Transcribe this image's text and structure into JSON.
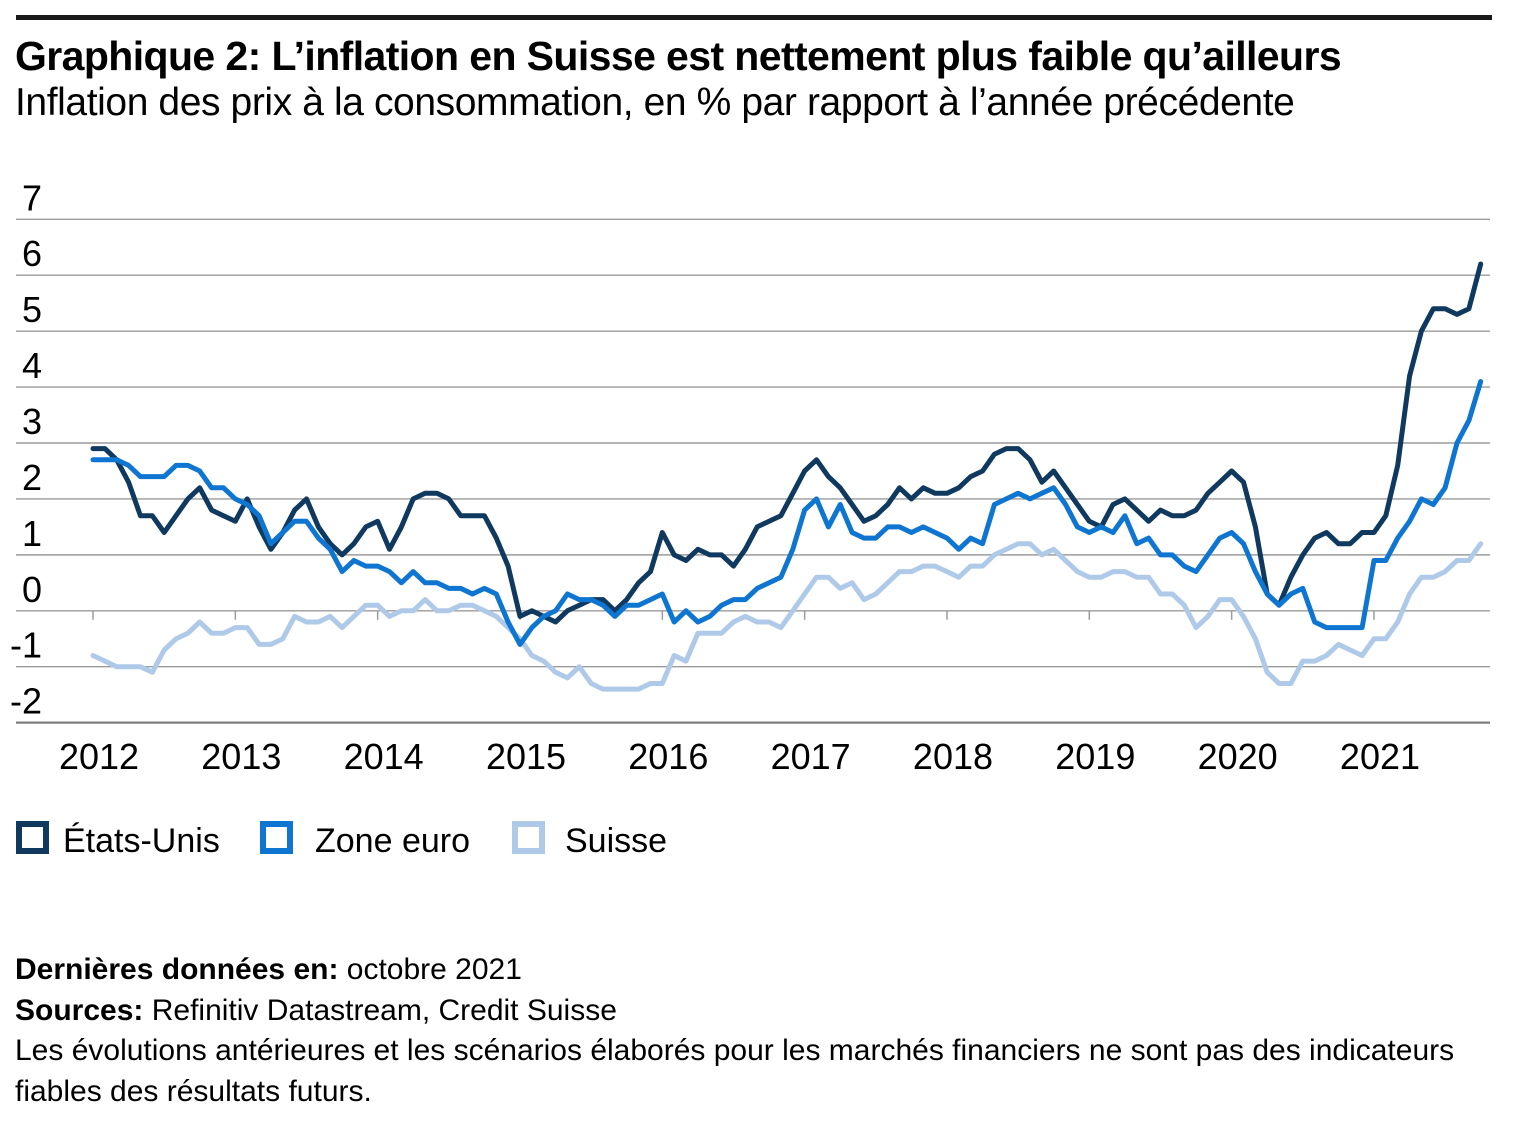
{
  "header": {
    "title": "Graphique 2: L’inflation en Suisse est nettement plus faible qu’ailleurs",
    "subtitle": "Inflation des prix à la consommation, en % par rapport à l’année précédente"
  },
  "colors": {
    "rule": "#1a1a1a",
    "grid": "#9b9b9b",
    "axis": "#7d7d7d",
    "text": "#000000"
  },
  "chart_data": {
    "type": "line",
    "title": "Inflation des prix à la consommation, en % par rapport à l’année précédente",
    "x_unit": "monthly",
    "x_start": "2012-01",
    "x_end": "2021-10",
    "x_tick_labels": [
      "2012",
      "2013",
      "2014",
      "2015",
      "2016",
      "2017",
      "2018",
      "2019",
      "2020",
      "2021"
    ],
    "y_ticks": [
      7,
      6,
      5,
      4,
      3,
      2,
      1,
      0,
      -1,
      -2
    ],
    "ylim": [
      -2,
      7
    ],
    "grid": "horizontal",
    "legend_position": "bottom-left",
    "series": [
      {
        "name": "États-Unis",
        "color": "#10395f",
        "values": [
          2.9,
          2.9,
          2.7,
          2.3,
          1.7,
          1.7,
          1.4,
          1.7,
          2.0,
          2.2,
          1.8,
          1.7,
          1.6,
          2.0,
          1.5,
          1.1,
          1.4,
          1.8,
          2.0,
          1.5,
          1.2,
          1.0,
          1.2,
          1.5,
          1.6,
          1.1,
          1.5,
          2.0,
          2.1,
          2.1,
          2.0,
          1.7,
          1.7,
          1.7,
          1.3,
          0.8,
          -0.1,
          0.0,
          -0.1,
          -0.2,
          0.0,
          0.1,
          0.2,
          0.2,
          0.0,
          0.2,
          0.5,
          0.7,
          1.4,
          1.0,
          0.9,
          1.1,
          1.0,
          1.0,
          0.8,
          1.1,
          1.5,
          1.6,
          1.7,
          2.1,
          2.5,
          2.7,
          2.4,
          2.2,
          1.9,
          1.6,
          1.7,
          1.9,
          2.2,
          2.0,
          2.2,
          2.1,
          2.1,
          2.2,
          2.4,
          2.5,
          2.8,
          2.9,
          2.9,
          2.7,
          2.3,
          2.5,
          2.2,
          1.9,
          1.6,
          1.5,
          1.9,
          2.0,
          1.8,
          1.6,
          1.8,
          1.7,
          1.7,
          1.8,
          2.1,
          2.3,
          2.5,
          2.3,
          1.5,
          0.3,
          0.1,
          0.6,
          1.0,
          1.3,
          1.4,
          1.2,
          1.2,
          1.4,
          1.4,
          1.7,
          2.6,
          4.2,
          5.0,
          5.4,
          5.4,
          5.3,
          5.4,
          6.2
        ]
      },
      {
        "name": "Zone euro",
        "color": "#0e76d0",
        "values": [
          2.7,
          2.7,
          2.7,
          2.6,
          2.4,
          2.4,
          2.4,
          2.6,
          2.6,
          2.5,
          2.2,
          2.2,
          2.0,
          1.9,
          1.7,
          1.2,
          1.4,
          1.6,
          1.6,
          1.3,
          1.1,
          0.7,
          0.9,
          0.8,
          0.8,
          0.7,
          0.5,
          0.7,
          0.5,
          0.5,
          0.4,
          0.4,
          0.3,
          0.4,
          0.3,
          -0.2,
          -0.6,
          -0.3,
          -0.1,
          0.0,
          0.3,
          0.2,
          0.2,
          0.1,
          -0.1,
          0.1,
          0.1,
          0.2,
          0.3,
          -0.2,
          0.0,
          -0.2,
          -0.1,
          0.1,
          0.2,
          0.2,
          0.4,
          0.5,
          0.6,
          1.1,
          1.8,
          2.0,
          1.5,
          1.9,
          1.4,
          1.3,
          1.3,
          1.5,
          1.5,
          1.4,
          1.5,
          1.4,
          1.3,
          1.1,
          1.3,
          1.2,
          1.9,
          2.0,
          2.1,
          2.0,
          2.1,
          2.2,
          1.9,
          1.5,
          1.4,
          1.5,
          1.4,
          1.7,
          1.2,
          1.3,
          1.0,
          1.0,
          0.8,
          0.7,
          1.0,
          1.3,
          1.4,
          1.2,
          0.7,
          0.3,
          0.1,
          0.3,
          0.4,
          -0.2,
          -0.3,
          -0.3,
          -0.3,
          -0.3,
          0.9,
          0.9,
          1.3,
          1.6,
          2.0,
          1.9,
          2.2,
          3.0,
          3.4,
          4.1
        ]
      },
      {
        "name": "Suisse",
        "color": "#afc9e8",
        "values": [
          -0.8,
          -0.9,
          -1.0,
          -1.0,
          -1.0,
          -1.1,
          -0.7,
          -0.5,
          -0.4,
          -0.2,
          -0.4,
          -0.4,
          -0.3,
          -0.3,
          -0.6,
          -0.6,
          -0.5,
          -0.1,
          -0.2,
          -0.2,
          -0.1,
          -0.3,
          -0.1,
          0.1,
          0.1,
          -0.1,
          0.0,
          0.0,
          0.2,
          0.0,
          0.0,
          0.1,
          0.1,
          0.0,
          -0.1,
          -0.3,
          -0.5,
          -0.8,
          -0.9,
          -1.1,
          -1.2,
          -1.0,
          -1.3,
          -1.4,
          -1.4,
          -1.4,
          -1.4,
          -1.3,
          -1.3,
          -0.8,
          -0.9,
          -0.4,
          -0.4,
          -0.4,
          -0.2,
          -0.1,
          -0.2,
          -0.2,
          -0.3,
          0.0,
          0.3,
          0.6,
          0.6,
          0.4,
          0.5,
          0.2,
          0.3,
          0.5,
          0.7,
          0.7,
          0.8,
          0.8,
          0.7,
          0.6,
          0.8,
          0.8,
          1.0,
          1.1,
          1.2,
          1.2,
          1.0,
          1.1,
          0.9,
          0.7,
          0.6,
          0.6,
          0.7,
          0.7,
          0.6,
          0.6,
          0.3,
          0.3,
          0.1,
          -0.3,
          -0.1,
          0.2,
          0.2,
          -0.1,
          -0.5,
          -1.1,
          -1.3,
          -1.3,
          -0.9,
          -0.9,
          -0.8,
          -0.6,
          -0.7,
          -0.8,
          -0.5,
          -0.5,
          -0.2,
          0.3,
          0.6,
          0.6,
          0.7,
          0.9,
          0.9,
          1.2
        ]
      }
    ]
  },
  "footer": {
    "last_data_label": "Dernières données en:",
    "last_data_value": "octobre 2021",
    "sources_label": "Sources:",
    "sources_value": "Refinitiv Datastream, Credit Suisse",
    "disclaimer_line1": "Les évolutions antérieures et les scénarios élaborés pour les marchés financiers ne sont pas des indicateurs",
    "disclaimer_line2": "fiables des résultats futurs."
  }
}
